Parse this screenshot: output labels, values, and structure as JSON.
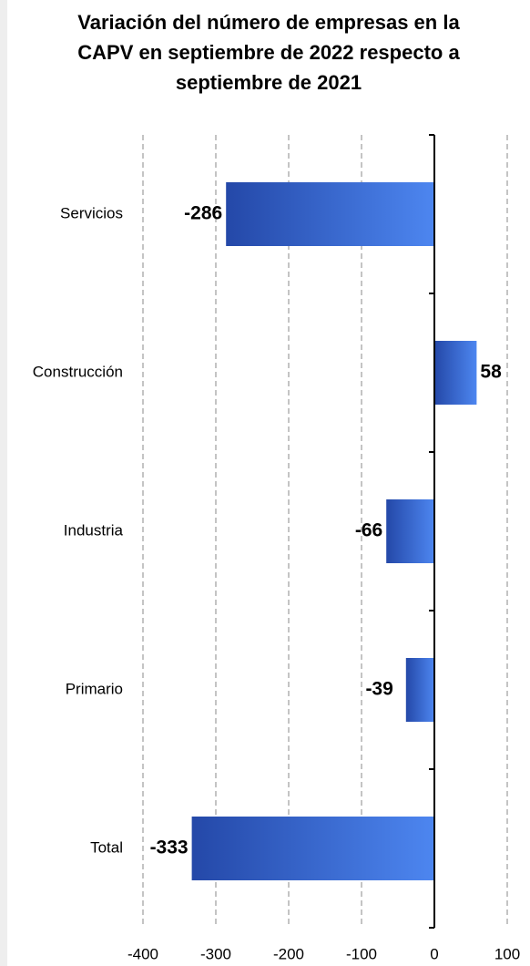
{
  "chart_data": {
    "type": "bar",
    "orientation": "horizontal",
    "title": "Variación del número de empresas en la CAPV en septiembre de 2022 respecto a septiembre de 2021",
    "categories": [
      "Servicios",
      "Construcción",
      "Industria",
      "Primario",
      "Total"
    ],
    "values": [
      -286,
      58,
      -66,
      -39,
      -333
    ],
    "color": "#3d6fd8",
    "xlim": [
      -400,
      100
    ],
    "xticks": [
      -400,
      -300,
      -200,
      -100,
      0,
      100
    ],
    "grid": true
  }
}
